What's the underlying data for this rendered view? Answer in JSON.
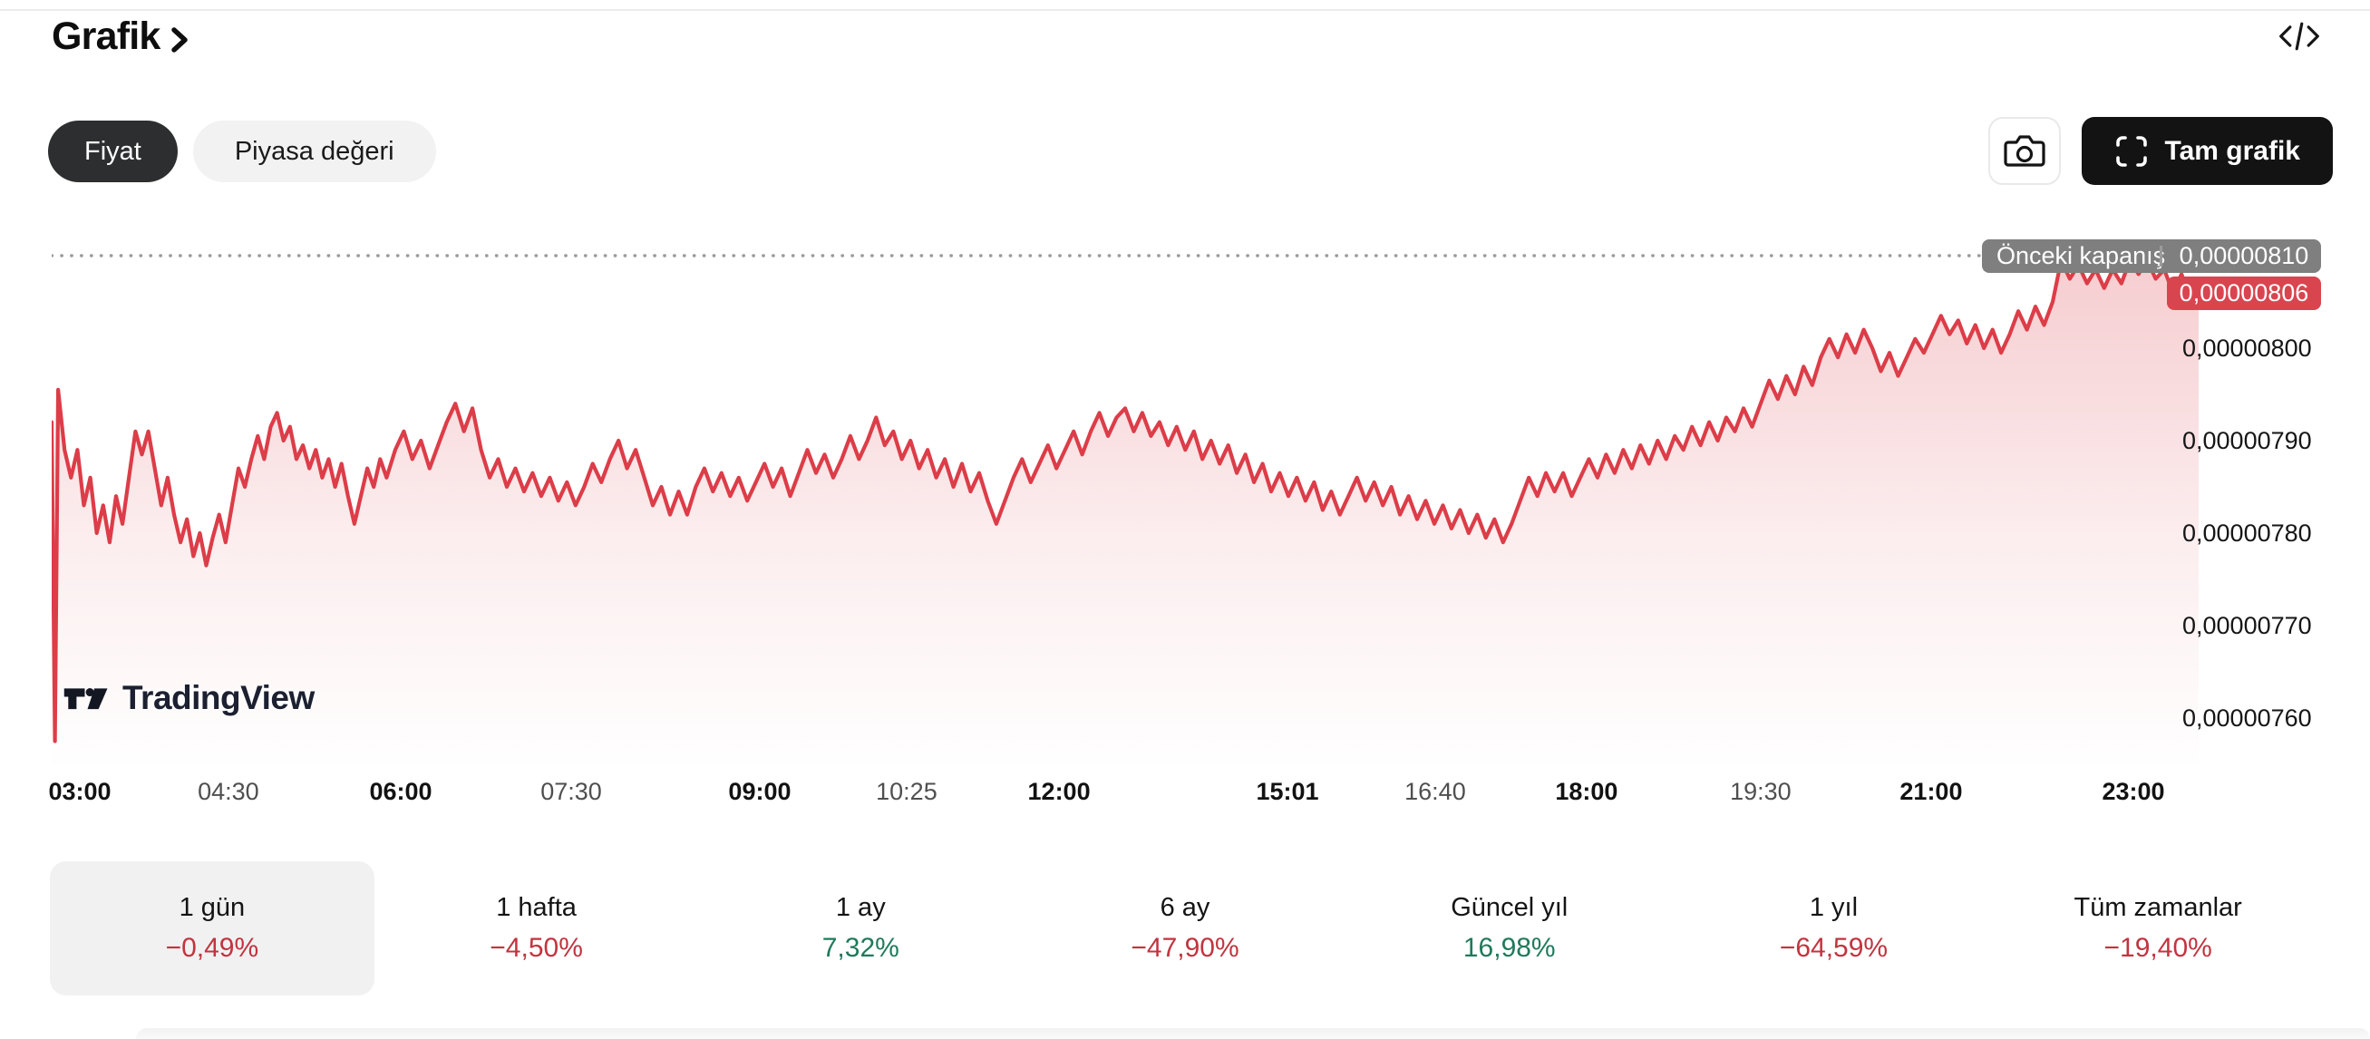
{
  "header": {
    "title": "Grafik"
  },
  "controls": {
    "price_tab": "Fiyat",
    "marketcap_tab": "Piyasa değeri",
    "fullscreen_label": "Tam grafik"
  },
  "watermark": {
    "text": "TradingView"
  },
  "chart_data": {
    "type": "area",
    "value_scale": 1e-08,
    "ylim": [
      756,
      812
    ],
    "grid": "off",
    "legend": "none",
    "line_color": "#dc3d48",
    "prev_close": {
      "label": "Önceki kapanış",
      "value_text": "0,00000810",
      "value": 810
    },
    "current": {
      "value_text": "0,00000806",
      "value": 806,
      "badge_color": "#d9454f"
    },
    "y_ticks": [
      {
        "label": "0,00000800",
        "v": 800
      },
      {
        "label": "0,00000790",
        "v": 790
      },
      {
        "label": "0,00000780",
        "v": 780
      },
      {
        "label": "0,00000770",
        "v": 770
      },
      {
        "label": "0,00000760",
        "v": 760
      }
    ],
    "x_ticks": [
      {
        "label": "03:00",
        "t": 0.0131,
        "bold": true
      },
      {
        "label": "04:30",
        "t": 0.0823,
        "bold": false
      },
      {
        "label": "06:00",
        "t": 0.1626,
        "bold": true
      },
      {
        "label": "07:30",
        "t": 0.242,
        "bold": false
      },
      {
        "label": "09:00",
        "t": 0.3298,
        "bold": true
      },
      {
        "label": "10:25",
        "t": 0.3982,
        "bold": false
      },
      {
        "label": "12:00",
        "t": 0.4692,
        "bold": true
      },
      {
        "label": "15:01",
        "t": 0.5756,
        "bold": true
      },
      {
        "label": "16:40",
        "t": 0.6444,
        "bold": false
      },
      {
        "label": "18:00",
        "t": 0.7149,
        "bold": true
      },
      {
        "label": "19:30",
        "t": 0.796,
        "bold": false
      },
      {
        "label": "21:00",
        "t": 0.8754,
        "bold": true
      },
      {
        "label": "23:00",
        "t": 0.9696,
        "bold": true
      }
    ],
    "series": [
      [
        0,
        792
      ],
      [
        0.0015,
        757.5
      ],
      [
        0.003,
        795.5
      ],
      [
        0.006,
        789
      ],
      [
        0.009,
        786
      ],
      [
        0.012,
        789
      ],
      [
        0.015,
        783
      ],
      [
        0.018,
        786
      ],
      [
        0.021,
        780
      ],
      [
        0.024,
        783
      ],
      [
        0.027,
        779
      ],
      [
        0.03,
        784
      ],
      [
        0.033,
        781
      ],
      [
        0.036,
        786
      ],
      [
        0.039,
        791
      ],
      [
        0.042,
        788.5
      ],
      [
        0.045,
        791
      ],
      [
        0.048,
        787
      ],
      [
        0.051,
        783
      ],
      [
        0.054,
        786
      ],
      [
        0.057,
        782
      ],
      [
        0.06,
        779
      ],
      [
        0.063,
        781.5
      ],
      [
        0.066,
        777.5
      ],
      [
        0.069,
        780
      ],
      [
        0.072,
        776.5
      ],
      [
        0.075,
        779.5
      ],
      [
        0.078,
        782
      ],
      [
        0.081,
        779
      ],
      [
        0.084,
        783
      ],
      [
        0.087,
        787
      ],
      [
        0.09,
        785
      ],
      [
        0.093,
        788
      ],
      [
        0.096,
        790.5
      ],
      [
        0.099,
        788
      ],
      [
        0.102,
        791.5
      ],
      [
        0.105,
        793
      ],
      [
        0.108,
        790
      ],
      [
        0.111,
        791.5
      ],
      [
        0.114,
        788
      ],
      [
        0.117,
        789.5
      ],
      [
        0.12,
        787
      ],
      [
        0.123,
        789
      ],
      [
        0.126,
        786
      ],
      [
        0.129,
        788
      ],
      [
        0.132,
        785
      ],
      [
        0.135,
        787.5
      ],
      [
        0.138,
        784
      ],
      [
        0.141,
        781
      ],
      [
        0.144,
        784
      ],
      [
        0.147,
        787
      ],
      [
        0.15,
        785
      ],
      [
        0.153,
        788
      ],
      [
        0.156,
        786
      ],
      [
        0.16,
        789
      ],
      [
        0.164,
        791
      ],
      [
        0.168,
        788
      ],
      [
        0.172,
        790
      ],
      [
        0.176,
        787
      ],
      [
        0.18,
        789.5
      ],
      [
        0.184,
        792
      ],
      [
        0.188,
        794
      ],
      [
        0.192,
        791
      ],
      [
        0.196,
        793.5
      ],
      [
        0.2,
        789
      ],
      [
        0.204,
        786
      ],
      [
        0.208,
        788
      ],
      [
        0.212,
        785
      ],
      [
        0.216,
        787
      ],
      [
        0.22,
        784.5
      ],
      [
        0.224,
        786.5
      ],
      [
        0.228,
        784
      ],
      [
        0.232,
        786
      ],
      [
        0.236,
        783.5
      ],
      [
        0.24,
        785.5
      ],
      [
        0.244,
        783
      ],
      [
        0.248,
        785
      ],
      [
        0.252,
        787.5
      ],
      [
        0.256,
        785.5
      ],
      [
        0.26,
        788
      ],
      [
        0.264,
        790
      ],
      [
        0.268,
        787
      ],
      [
        0.272,
        789
      ],
      [
        0.276,
        786
      ],
      [
        0.28,
        783
      ],
      [
        0.284,
        785
      ],
      [
        0.288,
        782
      ],
      [
        0.292,
        784.5
      ],
      [
        0.296,
        782
      ],
      [
        0.3,
        785
      ],
      [
        0.304,
        787
      ],
      [
        0.308,
        784.5
      ],
      [
        0.312,
        786.5
      ],
      [
        0.316,
        784
      ],
      [
        0.32,
        786
      ],
      [
        0.324,
        783.5
      ],
      [
        0.328,
        785.5
      ],
      [
        0.332,
        787.5
      ],
      [
        0.336,
        785
      ],
      [
        0.34,
        787
      ],
      [
        0.344,
        784
      ],
      [
        0.348,
        786.5
      ],
      [
        0.352,
        789
      ],
      [
        0.356,
        786.5
      ],
      [
        0.36,
        788.5
      ],
      [
        0.364,
        786
      ],
      [
        0.368,
        788
      ],
      [
        0.372,
        790.5
      ],
      [
        0.376,
        788
      ],
      [
        0.38,
        790
      ],
      [
        0.384,
        792.5
      ],
      [
        0.388,
        789.5
      ],
      [
        0.392,
        791
      ],
      [
        0.396,
        788
      ],
      [
        0.4,
        790
      ],
      [
        0.404,
        787
      ],
      [
        0.408,
        789
      ],
      [
        0.412,
        786
      ],
      [
        0.416,
        788
      ],
      [
        0.42,
        785
      ],
      [
        0.424,
        787.5
      ],
      [
        0.428,
        784.5
      ],
      [
        0.432,
        786.5
      ],
      [
        0.436,
        783.5
      ],
      [
        0.44,
        781
      ],
      [
        0.444,
        783.5
      ],
      [
        0.448,
        786
      ],
      [
        0.452,
        788
      ],
      [
        0.456,
        785.5
      ],
      [
        0.46,
        787.5
      ],
      [
        0.464,
        789.5
      ],
      [
        0.468,
        787
      ],
      [
        0.472,
        789
      ],
      [
        0.476,
        791
      ],
      [
        0.48,
        788.5
      ],
      [
        0.484,
        791
      ],
      [
        0.488,
        793
      ],
      [
        0.492,
        790.5
      ],
      [
        0.496,
        792.5
      ],
      [
        0.5,
        793.5
      ],
      [
        0.504,
        791
      ],
      [
        0.508,
        793
      ],
      [
        0.512,
        790.5
      ],
      [
        0.516,
        792
      ],
      [
        0.52,
        789.5
      ],
      [
        0.524,
        791.5
      ],
      [
        0.528,
        789
      ],
      [
        0.532,
        791
      ],
      [
        0.536,
        788
      ],
      [
        0.54,
        790
      ],
      [
        0.544,
        787.5
      ],
      [
        0.548,
        789.5
      ],
      [
        0.552,
        786.5
      ],
      [
        0.556,
        788.5
      ],
      [
        0.56,
        785.5
      ],
      [
        0.564,
        787.5
      ],
      [
        0.568,
        784.5
      ],
      [
        0.572,
        786.5
      ],
      [
        0.576,
        784
      ],
      [
        0.58,
        786
      ],
      [
        0.584,
        783.5
      ],
      [
        0.588,
        785.5
      ],
      [
        0.592,
        782.5
      ],
      [
        0.596,
        784.5
      ],
      [
        0.6,
        782
      ],
      [
        0.604,
        784
      ],
      [
        0.608,
        786
      ],
      [
        0.612,
        783.5
      ],
      [
        0.616,
        785.5
      ],
      [
        0.62,
        783
      ],
      [
        0.624,
        785
      ],
      [
        0.628,
        782
      ],
      [
        0.632,
        784
      ],
      [
        0.636,
        781.5
      ],
      [
        0.64,
        783.5
      ],
      [
        0.644,
        781
      ],
      [
        0.648,
        783
      ],
      [
        0.652,
        780.5
      ],
      [
        0.656,
        782.5
      ],
      [
        0.66,
        780
      ],
      [
        0.664,
        782
      ],
      [
        0.668,
        779.5
      ],
      [
        0.672,
        781.5
      ],
      [
        0.676,
        779
      ],
      [
        0.68,
        781
      ],
      [
        0.684,
        783.5
      ],
      [
        0.688,
        786
      ],
      [
        0.692,
        784
      ],
      [
        0.696,
        786.5
      ],
      [
        0.7,
        784.5
      ],
      [
        0.704,
        786.5
      ],
      [
        0.708,
        784
      ],
      [
        0.712,
        786
      ],
      [
        0.716,
        788
      ],
      [
        0.72,
        786
      ],
      [
        0.724,
        788.5
      ],
      [
        0.728,
        786.5
      ],
      [
        0.732,
        789
      ],
      [
        0.736,
        787
      ],
      [
        0.74,
        789.5
      ],
      [
        0.744,
        787.5
      ],
      [
        0.748,
        790
      ],
      [
        0.752,
        788
      ],
      [
        0.756,
        790.5
      ],
      [
        0.76,
        789
      ],
      [
        0.764,
        791.5
      ],
      [
        0.768,
        789.5
      ],
      [
        0.772,
        792
      ],
      [
        0.776,
        790
      ],
      [
        0.78,
        792.5
      ],
      [
        0.784,
        791
      ],
      [
        0.788,
        793.5
      ],
      [
        0.792,
        791.5
      ],
      [
        0.796,
        794
      ],
      [
        0.8,
        796.5
      ],
      [
        0.804,
        794.5
      ],
      [
        0.808,
        797
      ],
      [
        0.812,
        795
      ],
      [
        0.816,
        798
      ],
      [
        0.82,
        796
      ],
      [
        0.824,
        799
      ],
      [
        0.828,
        801
      ],
      [
        0.832,
        799
      ],
      [
        0.836,
        801.5
      ],
      [
        0.84,
        799.5
      ],
      [
        0.844,
        802
      ],
      [
        0.848,
        800
      ],
      [
        0.852,
        797.5
      ],
      [
        0.856,
        799.5
      ],
      [
        0.86,
        797
      ],
      [
        0.864,
        799
      ],
      [
        0.868,
        801
      ],
      [
        0.872,
        799.5
      ],
      [
        0.876,
        801.5
      ],
      [
        0.88,
        803.5
      ],
      [
        0.884,
        801.5
      ],
      [
        0.888,
        803
      ],
      [
        0.892,
        800.5
      ],
      [
        0.896,
        802.5
      ],
      [
        0.9,
        800
      ],
      [
        0.904,
        802
      ],
      [
        0.908,
        799.5
      ],
      [
        0.912,
        801.5
      ],
      [
        0.916,
        804
      ],
      [
        0.92,
        802
      ],
      [
        0.924,
        804.5
      ],
      [
        0.928,
        802.5
      ],
      [
        0.932,
        805
      ],
      [
        0.936,
        809.5
      ],
      [
        0.94,
        807.5
      ],
      [
        0.944,
        809
      ],
      [
        0.948,
        807
      ],
      [
        0.952,
        808.5
      ],
      [
        0.956,
        806.5
      ],
      [
        0.96,
        808.5
      ],
      [
        0.964,
        807
      ],
      [
        0.968,
        809.5
      ],
      [
        0.972,
        808
      ],
      [
        0.976,
        809.5
      ],
      [
        0.98,
        807.5
      ],
      [
        0.984,
        808.5
      ],
      [
        0.988,
        806
      ],
      [
        0.992,
        808
      ],
      [
        0.996,
        805.5
      ],
      [
        1,
        806
      ]
    ]
  },
  "periods": [
    {
      "label": "1 gün",
      "value": "−0,49%",
      "trend": "down",
      "selected": true
    },
    {
      "label": "1 hafta",
      "value": "−4,50%",
      "trend": "down",
      "selected": false
    },
    {
      "label": "1 ay",
      "value": "7,32%",
      "trend": "up",
      "selected": false
    },
    {
      "label": "6 ay",
      "value": "−47,90%",
      "trend": "down",
      "selected": false
    },
    {
      "label": "Güncel yıl",
      "value": "16,98%",
      "trend": "up",
      "selected": false
    },
    {
      "label": "1 yıl",
      "value": "−64,59%",
      "trend": "down",
      "selected": false
    },
    {
      "label": "Tüm zamanlar",
      "value": "−19,40%",
      "trend": "down",
      "selected": false
    }
  ]
}
